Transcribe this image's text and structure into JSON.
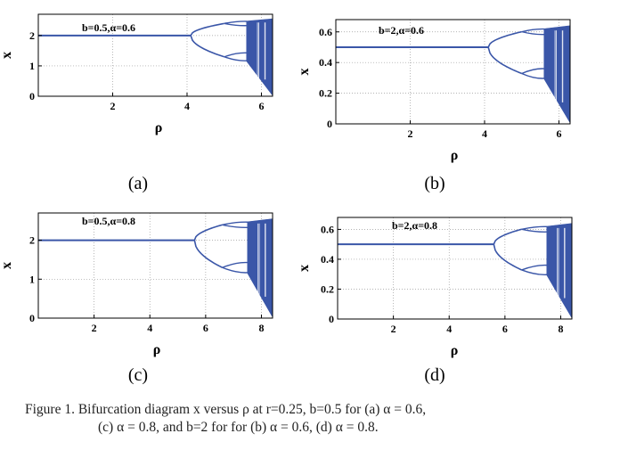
{
  "caption": {
    "line1": "Figure 1.   Bifurcation diagram x versus ρ at r=0.25, b=0.5 for (a) α = 0.6,",
    "line2": "(c) α = 0.8, and b=2 for for (b) α = 0.6, (d)  α = 0.8."
  },
  "colors": {
    "series": "#3a56a8",
    "axis": "#000000",
    "grid": "#9a9a9a"
  },
  "chart_data": [
    {
      "id": "a",
      "type": "line",
      "panel_label": "(a)",
      "annotation": "b=0.5,α=0.6",
      "xlabel": "ρ",
      "ylabel": "x",
      "xlim": [
        0,
        6.3
      ],
      "ylim": [
        0,
        2.7
      ],
      "xticks": [
        2,
        4,
        6
      ],
      "yticks": [
        0,
        1,
        2
      ],
      "grid": true,
      "fixed_point": 2.0,
      "bifurcation_rho": 4.1,
      "period4_rho": 5.0,
      "chaos_rho": 5.6,
      "upper_branch_max": 2.55,
      "lower_branch_min": 1.1
    },
    {
      "id": "b",
      "type": "line",
      "panel_label": "(b)",
      "annotation": "b=2,α=0.6",
      "xlabel": "ρ",
      "ylabel": "x",
      "xlim": [
        0,
        6.3
      ],
      "ylim": [
        0,
        0.68
      ],
      "xticks": [
        2,
        4,
        6
      ],
      "yticks": [
        0,
        0.2,
        0.4,
        0.6
      ],
      "grid": true,
      "fixed_point": 0.5,
      "bifurcation_rho": 4.1,
      "period4_rho": 5.0,
      "chaos_rho": 5.6,
      "upper_branch_max": 0.64,
      "lower_branch_min": 0.28
    },
    {
      "id": "c",
      "type": "line",
      "panel_label": "(c)",
      "annotation": "b=0.5,α=0.8",
      "xlabel": "ρ",
      "ylabel": "x",
      "xlim": [
        0,
        8.4
      ],
      "ylim": [
        0,
        2.7
      ],
      "xticks": [
        2,
        4,
        6,
        8
      ],
      "yticks": [
        0,
        1,
        2
      ],
      "grid": true,
      "fixed_point": 2.0,
      "bifurcation_rho": 5.6,
      "period4_rho": 6.6,
      "chaos_rho": 7.5,
      "upper_branch_max": 2.55,
      "lower_branch_min": 1.1
    },
    {
      "id": "d",
      "type": "line",
      "panel_label": "(d)",
      "annotation": "b=2,α=0.8",
      "xlabel": "ρ",
      "ylabel": "x",
      "xlim": [
        0,
        8.4
      ],
      "ylim": [
        0,
        0.68
      ],
      "xticks": [
        2,
        4,
        6,
        8
      ],
      "yticks": [
        0,
        0.2,
        0.4,
        0.6
      ],
      "grid": true,
      "fixed_point": 0.5,
      "bifurcation_rho": 5.6,
      "period4_rho": 6.6,
      "chaos_rho": 7.5,
      "upper_branch_max": 0.64,
      "lower_branch_min": 0.28
    }
  ]
}
